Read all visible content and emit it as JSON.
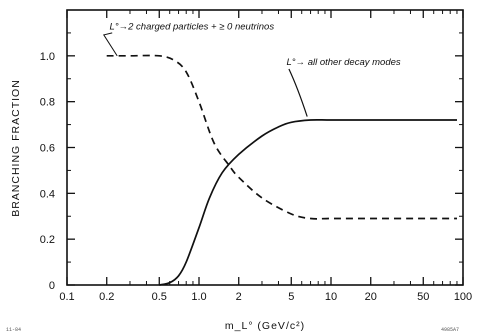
{
  "chart_data": {
    "type": "line",
    "title": "",
    "xlabel": "m_L°   (GeV/c²)",
    "ylabel": "BRANCHING FRACTION",
    "x_scale": "log",
    "xlim": [
      0.1,
      100
    ],
    "ylim": [
      0,
      1.2
    ],
    "x_ticks": [
      0.1,
      0.2,
      0.5,
      1.0,
      2,
      5,
      10,
      20,
      50,
      100
    ],
    "x_tick_labels": [
      "0.1",
      "0.2",
      "0.5",
      "1.0",
      "2",
      "5",
      "10",
      "20",
      "50",
      "100"
    ],
    "y_ticks": [
      0,
      0.2,
      0.4,
      0.6,
      0.8,
      1.0
    ],
    "y_tick_labels": [
      "0",
      "0.2",
      "0.4",
      "0.6",
      "0.8",
      "1.0"
    ],
    "grid": false,
    "series": [
      {
        "style": "dashed",
        "x": [
          0.2,
          0.3,
          0.5,
          0.65,
          0.8,
          1.0,
          1.3,
          1.7,
          2.0,
          3.0,
          5.0,
          7.0,
          10,
          20,
          50,
          90
        ],
        "y": [
          1.0,
          1.0,
          1.0,
          0.98,
          0.93,
          0.8,
          0.62,
          0.52,
          0.47,
          0.38,
          0.31,
          0.29,
          0.29,
          0.29,
          0.29,
          0.29
        ]
      },
      {
        "style": "solid",
        "x": [
          0.5,
          0.6,
          0.7,
          0.8,
          1.0,
          1.2,
          1.5,
          2.0,
          3.0,
          4.0,
          5.0,
          7.0,
          10,
          20,
          50,
          90
        ],
        "y": [
          0.0,
          0.01,
          0.04,
          0.1,
          0.25,
          0.38,
          0.49,
          0.57,
          0.65,
          0.69,
          0.71,
          0.72,
          0.72,
          0.72,
          0.72,
          0.72
        ]
      }
    ],
    "annotations": [
      {
        "text": "L°→2 charged particles + ≥ 0 neutrinos",
        "target_series": 0
      },
      {
        "text": "L°→ all other decay modes",
        "target_series": 1
      }
    ],
    "corner_marks": [
      "11-84",
      "4985A7"
    ]
  }
}
